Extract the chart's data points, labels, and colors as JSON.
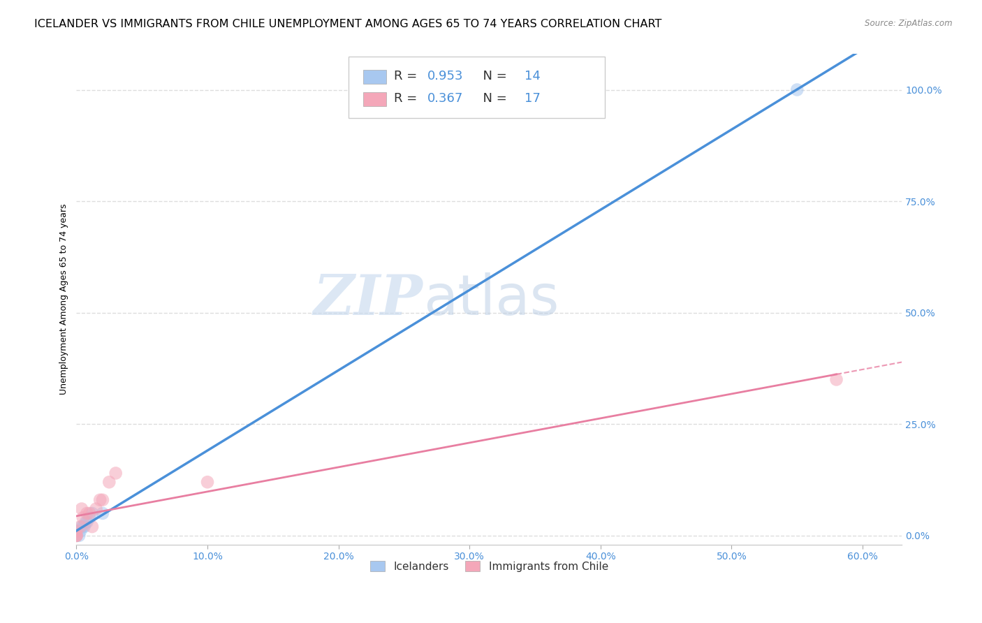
{
  "title": "ICELANDER VS IMMIGRANTS FROM CHILE UNEMPLOYMENT AMONG AGES 65 TO 74 YEARS CORRELATION CHART",
  "source": "Source: ZipAtlas.com",
  "ylabel_label": "Unemployment Among Ages 65 to 74 years",
  "xlim": [
    0.0,
    0.63
  ],
  "ylim": [
    -0.02,
    1.08
  ],
  "watermark_zip": "ZIP",
  "watermark_atlas": "atlas",
  "legend_label1": "Icelanders",
  "legend_label2": "Immigrants from Chile",
  "R1": 0.953,
  "N1": 14,
  "R2": 0.367,
  "N2": 17,
  "blue_color": "#A8C8F0",
  "pink_color": "#F4A7B9",
  "blue_line_color": "#4A90D9",
  "pink_line_color": "#E87EA1",
  "icelander_x": [
    0.0,
    0.0,
    0.0,
    0.002,
    0.003,
    0.004,
    0.005,
    0.006,
    0.007,
    0.008,
    0.01,
    0.012,
    0.02,
    0.55
  ],
  "icelander_y": [
    0.0,
    0.0,
    0.01,
    0.0,
    0.01,
    0.02,
    0.02,
    0.02,
    0.03,
    0.03,
    0.04,
    0.05,
    0.05,
    1.0
  ],
  "chile_x": [
    0.0,
    0.0,
    0.0,
    0.0,
    0.003,
    0.004,
    0.005,
    0.008,
    0.01,
    0.012,
    0.015,
    0.018,
    0.02,
    0.025,
    0.03,
    0.1,
    0.58
  ],
  "chile_y": [
    0.0,
    0.0,
    0.0,
    0.01,
    0.02,
    0.06,
    0.04,
    0.05,
    0.05,
    0.02,
    0.06,
    0.08,
    0.08,
    0.12,
    0.14,
    0.12,
    0.35
  ],
  "grid_color": "#DDDDDD",
  "background_color": "#FFFFFF",
  "title_fontsize": 11.5,
  "axis_label_fontsize": 9,
  "tick_fontsize": 10,
  "tick_color": "#4A90D9",
  "yticks": [
    0.0,
    0.25,
    0.5,
    0.75,
    1.0
  ],
  "ytick_labels": [
    "0.0%",
    "25.0%",
    "50.0%",
    "75.0%",
    "100.0%"
  ],
  "xticks": [
    0.0,
    0.1,
    0.2,
    0.3,
    0.4,
    0.5,
    0.6
  ],
  "xtick_labels": [
    "0.0%",
    "10.0%",
    "20.0%",
    "30.0%",
    "40.0%",
    "50.0%",
    "60.0%"
  ]
}
